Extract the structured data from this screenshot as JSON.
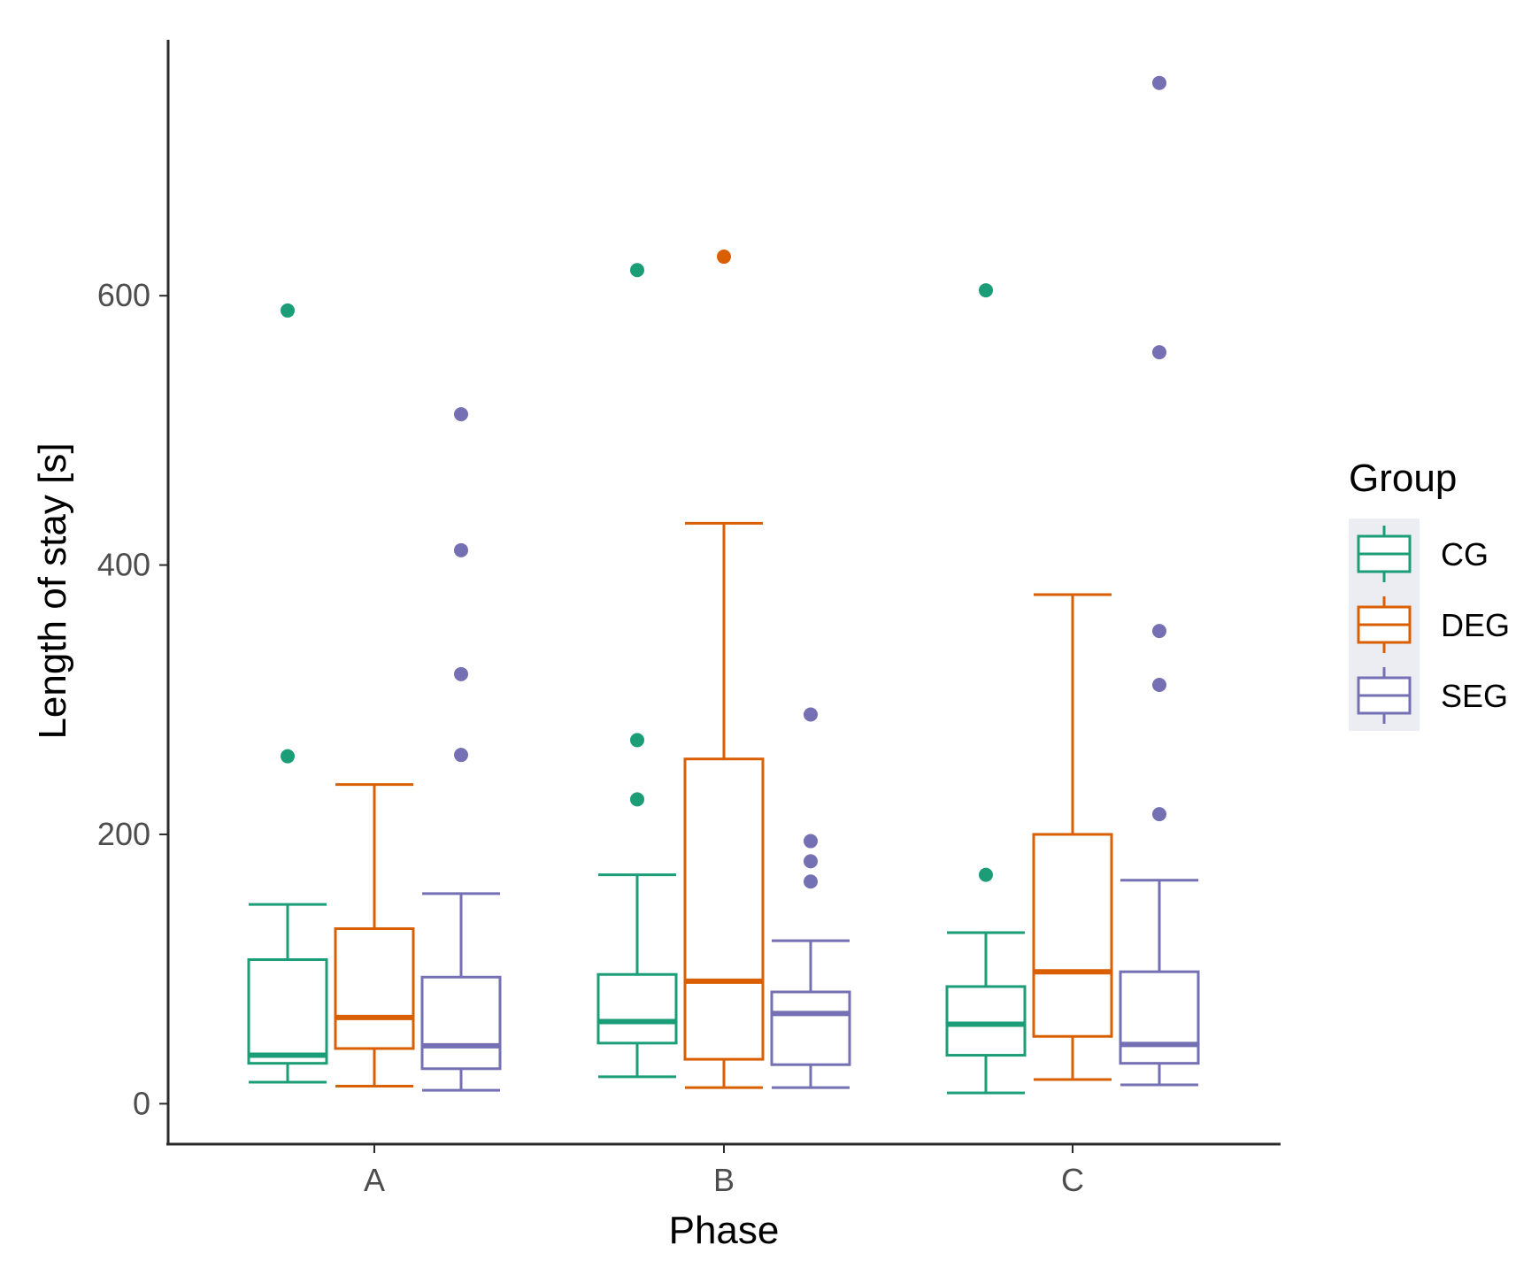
{
  "chart_data": {
    "type": "boxplot",
    "title": "",
    "xlabel": "Phase",
    "ylabel": "Length of stay [s]",
    "ylim": [
      -30,
      790
    ],
    "yticks": [
      0,
      200,
      400,
      600
    ],
    "categories": [
      "A",
      "B",
      "C"
    ],
    "legend": {
      "title": "Group",
      "position": "right"
    },
    "series": [
      {
        "name": "CG",
        "color": "#1b9e77",
        "boxes": [
          {
            "category": "A",
            "whisker_low": 16,
            "q1": 30,
            "median": 36,
            "q3": 107,
            "whisker_high": 148,
            "outliers": [
              258,
              589
            ]
          },
          {
            "category": "B",
            "whisker_low": 20,
            "q1": 45,
            "median": 61,
            "q3": 96,
            "whisker_high": 170,
            "outliers": [
              226,
              270,
              619
            ]
          },
          {
            "category": "C",
            "whisker_low": 8,
            "q1": 36,
            "median": 59,
            "q3": 87,
            "whisker_high": 127,
            "outliers": [
              170,
              604
            ]
          }
        ]
      },
      {
        "name": "DEG",
        "color": "#d95f02",
        "boxes": [
          {
            "category": "A",
            "whisker_low": 13,
            "q1": 41,
            "median": 64,
            "q3": 130,
            "whisker_high": 237,
            "outliers": []
          },
          {
            "category": "B",
            "whisker_low": 12,
            "q1": 33,
            "median": 91,
            "q3": 256,
            "whisker_high": 431,
            "outliers": [
              629
            ]
          },
          {
            "category": "C",
            "whisker_low": 18,
            "q1": 50,
            "median": 98,
            "q3": 200,
            "whisker_high": 378,
            "outliers": []
          }
        ]
      },
      {
        "name": "SEG",
        "color": "#7570b3",
        "boxes": [
          {
            "category": "A",
            "whisker_low": 10,
            "q1": 26,
            "median": 43,
            "q3": 94,
            "whisker_high": 156,
            "outliers": [
              259,
              319,
              411,
              512
            ]
          },
          {
            "category": "B",
            "whisker_low": 12,
            "q1": 29,
            "median": 67,
            "q3": 83,
            "whisker_high": 121,
            "outliers": [
              165,
              180,
              195,
              289
            ]
          },
          {
            "category": "C",
            "whisker_low": 14,
            "q1": 30,
            "median": 44,
            "q3": 98,
            "whisker_high": 166,
            "outliers": [
              215,
              311,
              351,
              758,
              558
            ]
          }
        ]
      }
    ]
  }
}
